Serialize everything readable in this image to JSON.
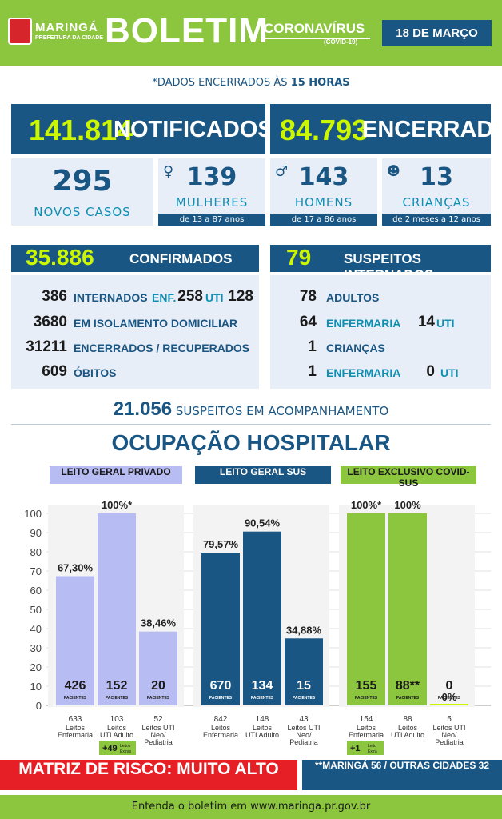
{
  "header": {
    "org": "MARINGÁ",
    "org_sub": "PREFEITURA DA CIDADE",
    "title": "BOLETIM",
    "topic": "CORONAVÍRUS",
    "topic_sub": "(COVID-19)",
    "date": "18 DE MARÇO"
  },
  "closed_note": {
    "prefix": "*DADOS ENCERRADOS ÀS ",
    "hour": "15 HORAS"
  },
  "totals": {
    "notified": "141.814",
    "notified_label": "NOTIFICADOS",
    "closed": "84.793",
    "closed_label": "ENCERRADOS"
  },
  "new_cases": {
    "value": "295",
    "label": "NOVOS CASOS"
  },
  "groups": [
    {
      "value": "139",
      "label": "MULHERES",
      "ages": "de 13 a 87 anos",
      "icon": "woman-icon"
    },
    {
      "value": "143",
      "label": "HOMENS",
      "ages": "de 17 a 86 anos",
      "icon": "man-icon"
    },
    {
      "value": "13",
      "label": "CRIANÇAS",
      "ages": "de 2 meses a 12 anos",
      "icon": "child-icon"
    }
  ],
  "confirmed": {
    "value": "35.886",
    "label": "CONFIRMADOS",
    "rows": [
      {
        "n": "386",
        "label": "INTERNADOS"
      },
      {
        "n": "3680",
        "label": "EM ISOLAMENTO DOMICILIAR"
      },
      {
        "n": "31211",
        "label": "ENCERRADOS / RECUPERADOS"
      },
      {
        "n": "609",
        "label": "ÓBITOS"
      }
    ],
    "enf_label": "ENF.",
    "enf": "258",
    "uti_label": "UTI",
    "uti": "128"
  },
  "suspects_hosp": {
    "value": "79",
    "label": "SUSPEITOS INTERNADOS",
    "adults": "78",
    "adults_label": "ADULTOS",
    "adults_enf": "64",
    "enf_label": "ENFERMARIA",
    "adults_uti": "14",
    "uti_label": "UTI",
    "children": "1",
    "children_label": "CRIANÇAS",
    "children_enf": "1",
    "children_uti": "0"
  },
  "suspects_follow": {
    "value": "21.056",
    "label": "SUSPEITOS EM ACOMPANHAMENTO"
  },
  "occupancy_title": "OCUPAÇÃO HOSPITALAR",
  "colors": {
    "navy": "#1a5683",
    "green": "#8cc63f",
    "lilac": "#b7bdf2",
    "lime": "#ccf700",
    "red": "#e61e25"
  },
  "chart_data": {
    "type": "bar",
    "ylim": [
      0,
      100
    ],
    "yticks": [
      "0",
      "10",
      "20",
      "30",
      "40",
      "50",
      "60",
      "70",
      "80",
      "90",
      "100"
    ],
    "patients_label": "PACIENTES",
    "groups": [
      {
        "name": "LEITO GERAL PRIVADO",
        "color": "#b7bdf2",
        "header_bg": "#b7bdf2",
        "header_fg": "#1a1a1a",
        "bars": [
          {
            "pct": 67.3,
            "label": "67,30%",
            "patients": "426",
            "beds": "633",
            "cat": [
              "Leitos",
              "Enfermaria"
            ]
          },
          {
            "pct": 100,
            "label": "100%*",
            "patients": "152",
            "beds": "103",
            "cat": [
              "Leitos",
              "UTI Adulto"
            ]
          },
          {
            "pct": 38.46,
            "label": "38,46%",
            "patients": "20",
            "beds": "52",
            "cat": [
              "Leitos UTI",
              "Neo/",
              "Pediatria"
            ]
          }
        ],
        "extra": {
          "value": "+49",
          "label": [
            "Leitos",
            "Extras"
          ]
        }
      },
      {
        "name": "LEITO GERAL SUS",
        "color": "#1a5683",
        "header_bg": "#1a5683",
        "header_fg": "#ffffff",
        "bars": [
          {
            "pct": 79.57,
            "label": "79,57%",
            "patients": "670",
            "beds": "842",
            "cat": [
              "Leitos",
              "Enfermaria"
            ]
          },
          {
            "pct": 90.54,
            "label": "90,54%",
            "patients": "134",
            "beds": "148",
            "cat": [
              "Leitos",
              "UTI Adulto"
            ]
          },
          {
            "pct": 34.88,
            "label": "34,88%",
            "patients": "15",
            "beds": "43",
            "cat": [
              "Leitos UTI",
              "Neo/",
              "Pediatria"
            ]
          }
        ]
      },
      {
        "name": "LEITO EXCLUSIVO COVID-SUS",
        "color": "#8cc63f",
        "header_bg": "#8cc63f",
        "header_fg": "#1a1a1a",
        "bars": [
          {
            "pct": 100,
            "label": "100%*",
            "patients": "155",
            "beds": "154",
            "cat": [
              "Leitos",
              "Enfermaria"
            ]
          },
          {
            "pct": 100,
            "label": "100%",
            "patients": "88**",
            "beds": "88",
            "cat": [
              "Leitos",
              "UTI Adulto"
            ]
          },
          {
            "pct": 0,
            "label": "0%",
            "patients": "0",
            "beds": "5",
            "cat": [
              "Leitos UTI",
              "Neo/",
              "Pediatria"
            ]
          }
        ],
        "extra": {
          "value": "+1",
          "label": [
            "Leito",
            "Extra"
          ]
        }
      }
    ]
  },
  "risk": "MATRIZ DE RISCO: MUITO ALTO",
  "cities": "**MARINGÁ 56 / OUTRAS CIDADES 32",
  "footer": "Entenda o boletim em www.maringa.pr.gov.br"
}
